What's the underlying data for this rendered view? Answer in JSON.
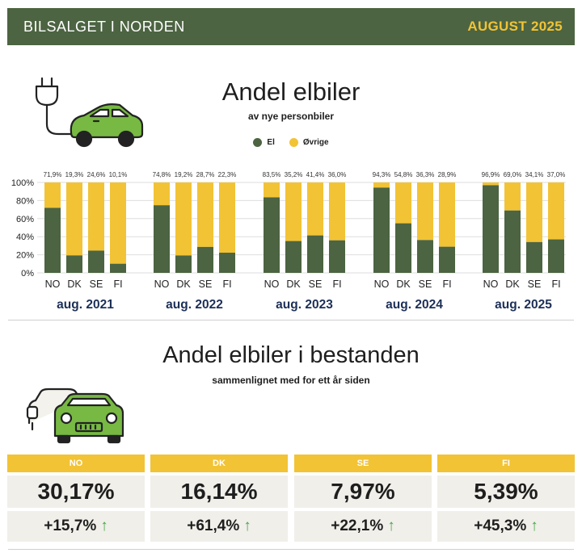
{
  "header": {
    "brand": "BILSALGET I NORDEN",
    "month": "AUGUST 2025"
  },
  "section1": {
    "title": "Andel elbiler",
    "subtitle": "av nye personbiler"
  },
  "legend": [
    {
      "label": "El",
      "color": "#4c6441"
    },
    {
      "label": "Øvrige",
      "color": "#f2c335"
    }
  ],
  "chart_data": {
    "type": "bar",
    "stacked": true,
    "ylim": [
      0,
      100
    ],
    "yticks": [
      "0%",
      "20%",
      "40%",
      "60%",
      "80%",
      "100%"
    ],
    "grid": true,
    "series": [
      {
        "name": "El",
        "color": "#4c6441"
      },
      {
        "name": "Øvrige",
        "color": "#f2c335"
      }
    ],
    "groups": [
      {
        "label": "aug. 2021",
        "categories": [
          "NO",
          "DK",
          "SE",
          "FI"
        ],
        "values": [
          71.9,
          19.3,
          24.6,
          10.1
        ],
        "value_labels": [
          "71,9%",
          "19,3%",
          "24,6%",
          "10,1%"
        ]
      },
      {
        "label": "aug. 2022",
        "categories": [
          "NO",
          "DK",
          "SE",
          "FI"
        ],
        "values": [
          74.8,
          19.2,
          28.7,
          22.3
        ],
        "value_labels": [
          "74,8%",
          "19,2%",
          "28,7%",
          "22,3%"
        ]
      },
      {
        "label": "aug. 2023",
        "categories": [
          "NO",
          "DK",
          "SE",
          "FI"
        ],
        "values": [
          83.5,
          35.2,
          41.4,
          36.0
        ],
        "value_labels": [
          "83,5%",
          "35,2%",
          "41,4%",
          "36,0%"
        ]
      },
      {
        "label": "aug. 2024",
        "categories": [
          "NO",
          "DK",
          "SE",
          "FI"
        ],
        "values": [
          94.3,
          54.8,
          36.3,
          28.9
        ],
        "value_labels": [
          "94,3%",
          "54,8%",
          "36,3%",
          "28,9%"
        ]
      },
      {
        "label": "aug. 2025",
        "categories": [
          "NO",
          "DK",
          "SE",
          "FI"
        ],
        "values": [
          96.9,
          69.0,
          34.1,
          37.0
        ],
        "value_labels": [
          "96,9%",
          "69,0%",
          "34,1%",
          "37,0%"
        ]
      }
    ]
  },
  "section2": {
    "title": "Andel elbiler i bestanden",
    "subtitle": "sammenlignet med for ett år siden",
    "cards": [
      {
        "country": "NO",
        "share": "30,17%",
        "change": "+15,7%"
      },
      {
        "country": "DK",
        "share": "16,14%",
        "change": "+61,4%"
      },
      {
        "country": "SE",
        "share": "7,97%",
        "change": "+22,1%"
      },
      {
        "country": "FI",
        "share": "5,39%",
        "change": "+45,3%"
      }
    ]
  },
  "icons": {
    "charger_car": "ev-charger-car-icon",
    "cars": "two-cars-icon",
    "arrow": "arrow-up-icon"
  },
  "colors": {
    "el": "#4c6441",
    "ovrige": "#f2c335",
    "header_bg": "#4c6441",
    "arrow": "#4aa544",
    "card_bg": "#f0efea"
  }
}
